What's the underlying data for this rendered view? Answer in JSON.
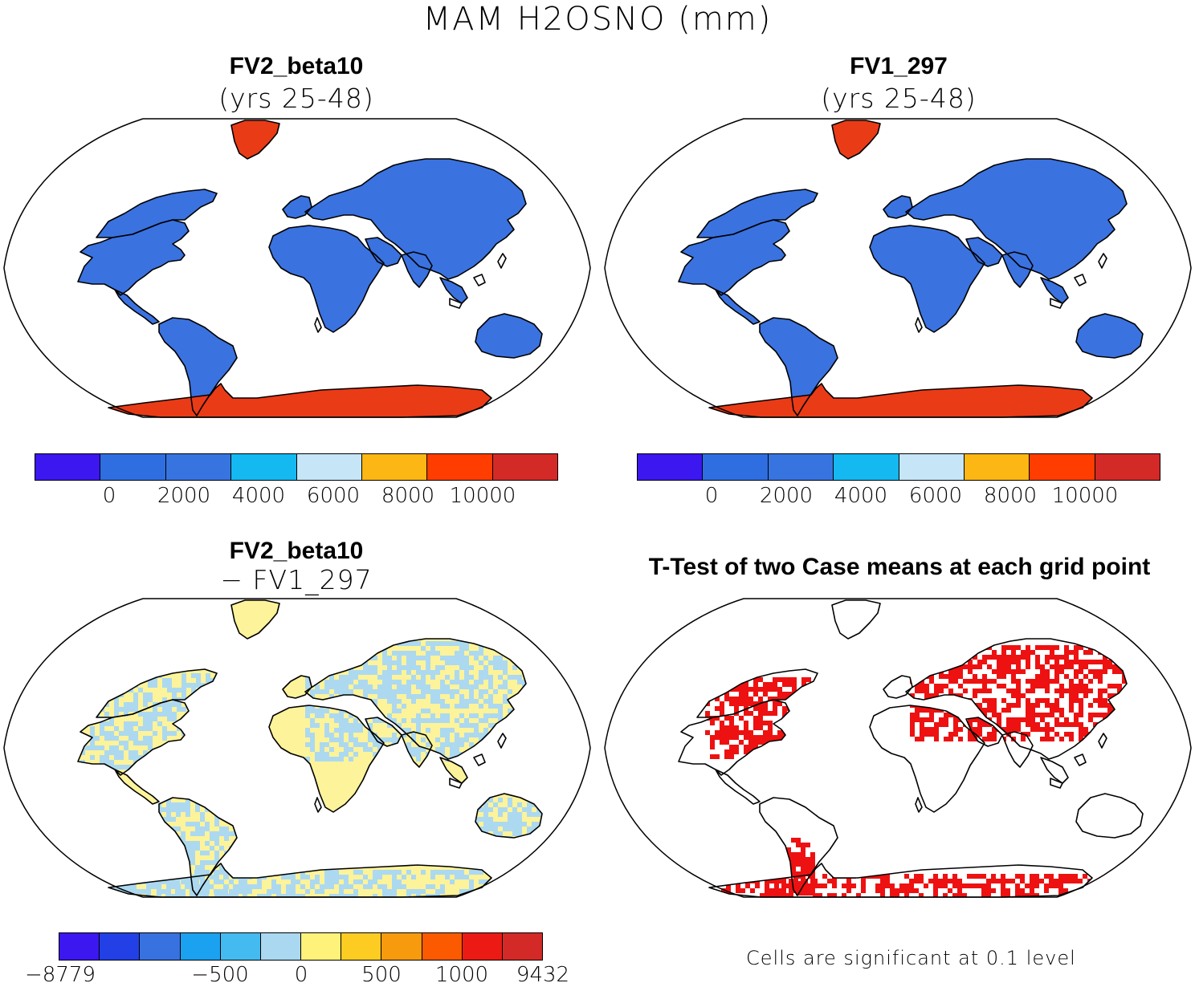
{
  "figure_title": "MAM H2OSNO (mm)",
  "panels": {
    "top_left": {
      "title": "FV2_beta10",
      "subtitle": "(yrs 25-48)"
    },
    "top_right": {
      "title": "FV1_297",
      "subtitle": "(yrs 25-48)"
    },
    "bottom_left": {
      "title": "FV2_beta10",
      "subtitle": "− FV1_297"
    },
    "bottom_right": {
      "title": "T-Test of two Case means at each grid point"
    }
  },
  "colorbar_abs": {
    "colors": [
      "#3c17f0",
      "#2f6ee0",
      "#3774e0",
      "#14b9f2",
      "#c6e6f7",
      "#fdb714",
      "#ff3d00",
      "#d32a27"
    ],
    "ticks": [
      "0",
      "2000",
      "4000",
      "6000",
      "8000",
      "10000"
    ]
  },
  "colorbar_diff": {
    "colors": [
      "#3c17f0",
      "#2240e6",
      "#3872e0",
      "#1aa1f0",
      "#44bbf0",
      "#a9d8f0",
      "#fff27a",
      "#fdcc22",
      "#f79a0e",
      "#fb5a00",
      "#ec1a14",
      "#d32a27"
    ],
    "ticks": [
      "−8779",
      "−500",
      "0",
      "500",
      "1000",
      "9432"
    ]
  },
  "significance_note": "Cells are significant at 0.1 level",
  "map_colors": {
    "land_abs": "#3a72e0",
    "ice_abs": "#ea3b17",
    "land_diff": "#fdf39a",
    "cold_diff": "#acd9f0",
    "signif": "#ee1111"
  }
}
